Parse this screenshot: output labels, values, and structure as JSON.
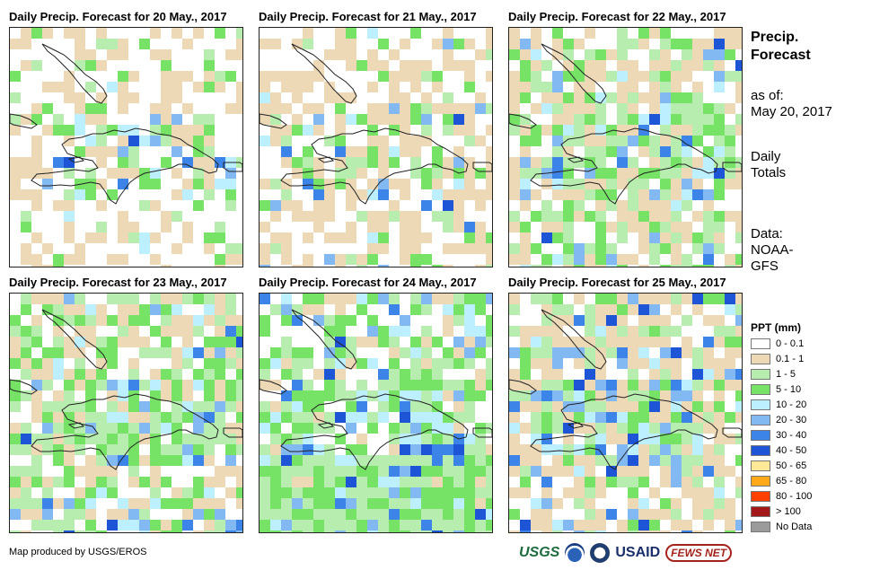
{
  "panels": [
    {
      "title": "Daily Precip. Forecast for 20 May., 2017",
      "seed": 11,
      "dry": 0.33,
      "light": 0.1,
      "mod": 0.02,
      "heavy": 0.0,
      "wet_south": false
    },
    {
      "title": "Daily Precip. Forecast for 21 May., 2017",
      "seed": 23,
      "dry": 0.4,
      "light": 0.09,
      "mod": 0.03,
      "heavy": 0.01,
      "wet_south": false
    },
    {
      "title": "Daily Precip. Forecast for 22 May., 2017",
      "seed": 37,
      "dry": 0.32,
      "light": 0.32,
      "mod": 0.08,
      "heavy": 0.02,
      "wet_south": false
    },
    {
      "title": "Daily Precip. Forecast for 23 May., 2017",
      "seed": 41,
      "dry": 0.22,
      "light": 0.4,
      "mod": 0.1,
      "heavy": 0.02,
      "wet_south": false
    },
    {
      "title": "Daily Precip. Forecast for 24 May., 2017",
      "seed": 53,
      "dry": 0.14,
      "light": 0.36,
      "mod": 0.12,
      "heavy": 0.03,
      "wet_south": true
    },
    {
      "title": "Daily Precip. Forecast for 25 May., 2017",
      "seed": 67,
      "dry": 0.4,
      "light": 0.24,
      "mod": 0.1,
      "heavy": 0.04,
      "wet_south": false
    }
  ],
  "side_info": {
    "title_line1": "Precip.",
    "title_line2": "Forecast",
    "asof_label": "as of:",
    "asof_date": "May 20, 2017",
    "daily_line1": "Daily",
    "daily_line2": "Totals",
    "data_line1": "Data:",
    "data_line2": "NOAA-",
    "data_line3": "GFS"
  },
  "legend": {
    "title": "PPT (mm)",
    "items": [
      {
        "label": "0 - 0.1",
        "color": "#ffffff"
      },
      {
        "label": "0.1 - 1",
        "color": "#eed9b6"
      },
      {
        "label": "1 - 5",
        "color": "#b7eeb0"
      },
      {
        "label": "5 - 10",
        "color": "#76e366"
      },
      {
        "label": "10 - 20",
        "color": "#bcefff"
      },
      {
        "label": "20 - 30",
        "color": "#82b9f2"
      },
      {
        "label": "30 - 40",
        "color": "#3d84e8"
      },
      {
        "label": "40 - 50",
        "color": "#1d55d6"
      },
      {
        "label": "50 - 65",
        "color": "#ffe999"
      },
      {
        "label": "65 - 80",
        "color": "#ffa81a"
      },
      {
        "label": "80 - 100",
        "color": "#ff4000"
      },
      {
        "label": "> 100",
        "color": "#a31818"
      },
      {
        "label": "No Data",
        "color": "#9b9b9b"
      }
    ]
  },
  "credit": "Map produced by USGS/EROS",
  "logos": {
    "usgs": "USGS",
    "usaid": "USAID",
    "fews": "FEWS NET"
  }
}
